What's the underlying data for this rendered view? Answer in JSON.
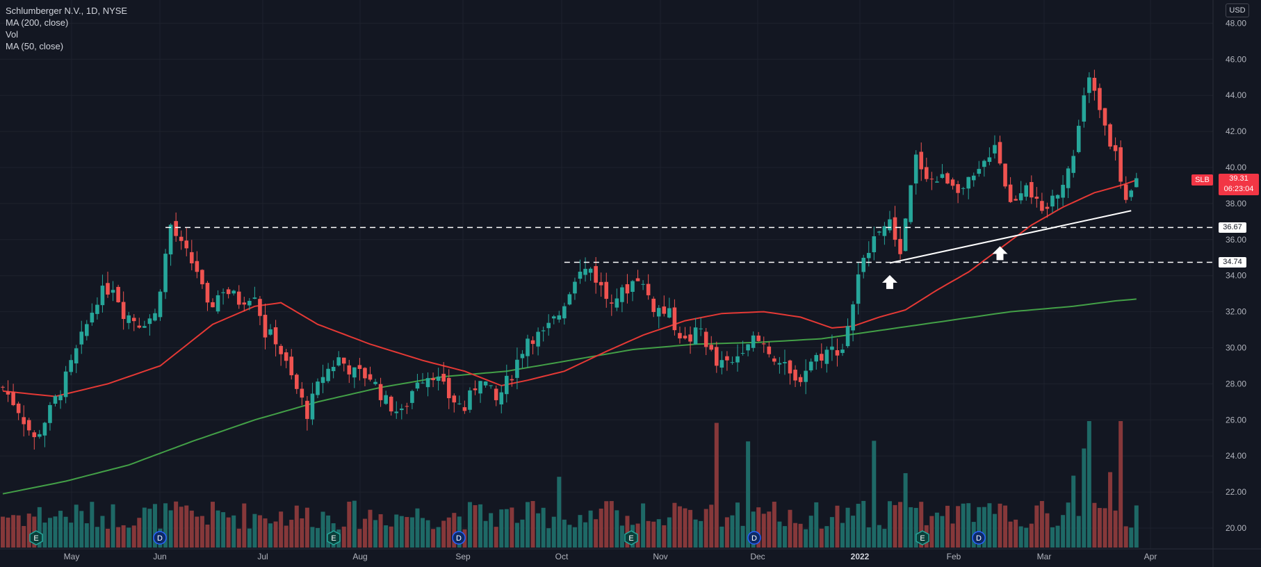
{
  "legend": {
    "title": "Schlumberger N.V., 1D, NYSE",
    "ma200": "MA (200, close)",
    "vol": "Vol",
    "ma50": "MA (50, close)"
  },
  "currency": "USD",
  "symbol": "SLB",
  "last_price": "39.31",
  "countdown": "06:23:04",
  "levels": [
    "36.67",
    "34.74"
  ],
  "colors": {
    "background": "#131722",
    "up": "#26a69a",
    "down": "#ef5350",
    "ma50": "#e53935",
    "ma200": "#43a047",
    "level": "#ffffff"
  },
  "chart_data": {
    "type": "candlestick",
    "x_ticks": [
      "May",
      "Jun",
      "Jul",
      "Aug",
      "Sep",
      "Oct",
      "Nov",
      "Dec",
      "2022",
      "Feb",
      "Mar",
      "Apr"
    ],
    "y_ticks": [
      "20.00",
      "22.00",
      "24.00",
      "26.00",
      "28.00",
      "30.00",
      "32.00",
      "34.00",
      "36.00",
      "38.00",
      "40.00",
      "42.00",
      "44.00",
      "46.00",
      "48.00"
    ],
    "ylim": [
      19,
      49
    ],
    "events": [
      {
        "label": "E",
        "month": "May"
      },
      {
        "label": "D",
        "month": "Jun"
      },
      {
        "label": "E",
        "month": "Jul"
      },
      {
        "label": "D",
        "month": "Aug"
      },
      {
        "label": "E",
        "month": "Oct"
      },
      {
        "label": "D",
        "month": "Nov"
      },
      {
        "label": "E",
        "month": "Jan"
      },
      {
        "label": "D",
        "month": "Feb"
      }
    ],
    "close_path": [
      [
        0,
        27.8
      ],
      [
        3,
        26.6
      ],
      [
        6,
        24.9
      ],
      [
        9,
        26.5
      ],
      [
        12,
        28.3
      ],
      [
        15,
        30.5
      ],
      [
        18,
        32.8
      ],
      [
        21,
        33.5
      ],
      [
        23,
        32.0
      ],
      [
        26,
        31.4
      ],
      [
        29,
        31.8
      ],
      [
        32,
        36.8
      ],
      [
        34,
        35.6
      ],
      [
        37,
        34.3
      ],
      [
        39,
        32.1
      ],
      [
        42,
        33.3
      ],
      [
        45,
        32.6
      ],
      [
        48,
        33.1
      ],
      [
        50,
        30.8
      ],
      [
        52,
        30.5
      ],
      [
        55,
        28.3
      ],
      [
        58,
        26.4
      ],
      [
        61,
        28.5
      ],
      [
        64,
        29.4
      ],
      [
        67,
        28.6
      ],
      [
        70,
        28.4
      ],
      [
        73,
        27.0
      ],
      [
        76,
        26.3
      ],
      [
        79,
        28.3
      ],
      [
        82,
        28.6
      ],
      [
        85,
        27.3
      ],
      [
        88,
        26.6
      ],
      [
        91,
        28.5
      ],
      [
        94,
        27.0
      ],
      [
        97,
        28.6
      ],
      [
        100,
        30.6
      ],
      [
        103,
        30.7
      ],
      [
        106,
        31.9
      ],
      [
        109,
        34.0
      ],
      [
        112,
        34.4
      ],
      [
        115,
        32.8
      ],
      [
        118,
        33.0
      ],
      [
        121,
        34.0
      ],
      [
        124,
        32.3
      ],
      [
        127,
        31.8
      ],
      [
        130,
        30.3
      ],
      [
        133,
        31.0
      ],
      [
        136,
        29.0
      ],
      [
        139,
        29.1
      ],
      [
        142,
        30.6
      ],
      [
        145,
        30.2
      ],
      [
        148,
        29.2
      ],
      [
        151,
        28.0
      ],
      [
        154,
        29.3
      ],
      [
        157,
        29.8
      ],
      [
        160,
        30.0
      ],
      [
        163,
        33.8
      ],
      [
        166,
        36.6
      ],
      [
        169,
        36.8
      ],
      [
        171,
        35.4
      ],
      [
        174,
        40.5
      ],
      [
        177,
        39.3
      ],
      [
        180,
        39.4
      ],
      [
        183,
        38.8
      ],
      [
        186,
        39.6
      ],
      [
        189,
        41.5
      ],
      [
        192,
        38.0
      ],
      [
        195,
        39.3
      ],
      [
        198,
        37.2
      ],
      [
        201,
        38.8
      ],
      [
        204,
        40.5
      ],
      [
        207,
        45.4
      ],
      [
        210,
        42.6
      ],
      [
        212,
        40.5
      ],
      [
        214,
        37.8
      ],
      [
        216,
        39.31
      ]
    ],
    "ma50_path": [
      [
        0,
        27.6
      ],
      [
        10,
        27.3
      ],
      [
        20,
        28.0
      ],
      [
        30,
        29.0
      ],
      [
        40,
        31.3
      ],
      [
        48,
        32.3
      ],
      [
        53,
        32.5
      ],
      [
        60,
        31.3
      ],
      [
        70,
        30.2
      ],
      [
        80,
        29.3
      ],
      [
        88,
        28.7
      ],
      [
        95,
        27.9
      ],
      [
        100,
        28.2
      ],
      [
        107,
        28.7
      ],
      [
        115,
        29.8
      ],
      [
        122,
        30.7
      ],
      [
        130,
        31.5
      ],
      [
        137,
        31.9
      ],
      [
        145,
        32.0
      ],
      [
        152,
        31.7
      ],
      [
        158,
        31.1
      ],
      [
        162,
        31.2
      ],
      [
        167,
        31.7
      ],
      [
        172,
        32.1
      ],
      [
        178,
        33.2
      ],
      [
        184,
        34.2
      ],
      [
        190,
        35.5
      ],
      [
        196,
        36.8
      ],
      [
        202,
        37.8
      ],
      [
        208,
        38.6
      ],
      [
        213,
        39.0
      ],
      [
        216,
        39.3
      ]
    ],
    "ma200_path": [
      [
        0,
        21.9
      ],
      [
        12,
        22.6
      ],
      [
        24,
        23.5
      ],
      [
        36,
        24.8
      ],
      [
        48,
        26.0
      ],
      [
        60,
        27.0
      ],
      [
        72,
        27.8
      ],
      [
        84,
        28.4
      ],
      [
        96,
        28.7
      ],
      [
        108,
        29.3
      ],
      [
        120,
        29.9
      ],
      [
        132,
        30.2
      ],
      [
        144,
        30.3
      ],
      [
        156,
        30.5
      ],
      [
        168,
        31.0
      ],
      [
        180,
        31.5
      ],
      [
        192,
        32.0
      ],
      [
        204,
        32.3
      ],
      [
        212,
        32.6
      ],
      [
        216,
        32.7
      ]
    ],
    "horizontal_levels": [
      {
        "value": 36.67,
        "from_bar": 31
      },
      {
        "value": 34.74,
        "from_bar": 107
      }
    ],
    "trendline": [
      [
        169,
        34.7
      ],
      [
        215,
        37.6
      ]
    ],
    "arrows": [
      [
        169,
        33.8
      ],
      [
        190,
        35.4
      ]
    ],
    "volume_ylim": [
      0,
      7.5
    ]
  }
}
